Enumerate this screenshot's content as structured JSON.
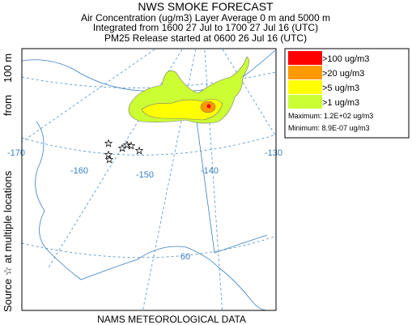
{
  "header": {
    "title": "NWS SMOKE FORECAST",
    "lines": [
      "Air Concentration (ug/m3) Layer Average    0 m and  5000 m",
      "Integrated from 1600 27 Jul to 1700 27 Jul 16 (UTC)",
      "PM25 Release started at 0600 26 Jul 16 (UTC)"
    ]
  },
  "side_label": {
    "source": "Source ☆ at multiple locations",
    "from": "from",
    "height": "100 m"
  },
  "map": {
    "longitudes": [
      "-170",
      "-160",
      "-150",
      "-140",
      "-130"
    ],
    "latitudes": [
      "60"
    ]
  },
  "legend": {
    "entries": [
      {
        "label": ">100 ug/m3",
        "color": "#ff0000"
      },
      {
        "label": ">20 ug/m3",
        "color": "#ff9900"
      },
      {
        "label": ">5 ug/m3",
        "color": "#ffff00"
      },
      {
        "label": ">1 ug/m3",
        "color": "#ccff33"
      }
    ],
    "maximum": "Maximum: 1.2E+02 ug/m3",
    "minimum": "Minimum: 8.9E-07 ug/m3"
  },
  "footer": "NAMS METEOROLOGICAL DATA"
}
